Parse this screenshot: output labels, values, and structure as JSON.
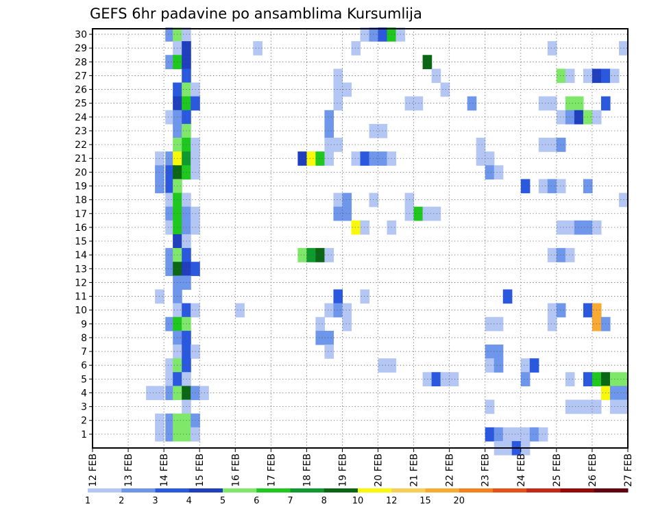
{
  "chart_data": {
    "type": "heatmap",
    "title": "GEFS 6hr padavine po ansamblima Kursumlija",
    "x_axis": {
      "tick_labels": [
        "12 FEB",
        "13 FEB",
        "14 FEB",
        "15 FEB",
        "16 FEB",
        "17 FEB",
        "18 FEB",
        "19 FEB",
        "20 FEB",
        "21 FEB",
        "22 FEB",
        "23 FEB",
        "24 FEB",
        "25 FEB",
        "26 FEB",
        "27 FEB"
      ],
      "range_days": [
        12,
        27
      ],
      "step_hours": 6
    },
    "y_axis": {
      "tick_labels": [
        "1",
        "2",
        "3",
        "4",
        "5",
        "6",
        "7",
        "8",
        "9",
        "10",
        "11",
        "12",
        "13",
        "14",
        "15",
        "16",
        "17",
        "18",
        "19",
        "20",
        "21",
        "22",
        "23",
        "24",
        "25",
        "26",
        "27",
        "28",
        "29",
        "30"
      ],
      "range": [
        0,
        30
      ]
    },
    "grid": true,
    "colorbar": {
      "placement": "bottom",
      "labels": [
        "1",
        "2",
        "3",
        "4",
        "5",
        "6",
        "7",
        "8",
        "10",
        "12",
        "15",
        "20"
      ],
      "colors": [
        "#b4c6f4",
        "#6e96ea",
        "#2a59e0",
        "#1f3fbe",
        "#7fe86a",
        "#1ec81e",
        "#0e9a2c",
        "#0b6616",
        "#f8f80a",
        "#f8ce58",
        "#f8aa32",
        "#f4801e",
        "#e85018",
        "#c82818",
        "#980a0a",
        "#640010"
      ]
    },
    "cells": [
      [
        14.04,
        30,
        2
      ],
      [
        14.25,
        30,
        5
      ],
      [
        14.5,
        30,
        1
      ],
      [
        19.5,
        30,
        1
      ],
      [
        19.75,
        30,
        2
      ],
      [
        20,
        30,
        3
      ],
      [
        20.25,
        30,
        6
      ],
      [
        20.5,
        30,
        1
      ],
      [
        14.25,
        29,
        1
      ],
      [
        14.5,
        29,
        4
      ],
      [
        16.5,
        29,
        1
      ],
      [
        19.25,
        29,
        1
      ],
      [
        24.75,
        29,
        1
      ],
      [
        26.75,
        29,
        1
      ],
      [
        14.04,
        28,
        2
      ],
      [
        14.25,
        28,
        6
      ],
      [
        14.5,
        28,
        4
      ],
      [
        21.25,
        28,
        8
      ],
      [
        14.5,
        27,
        3
      ],
      [
        18.75,
        27,
        1
      ],
      [
        21.5,
        27,
        1
      ],
      [
        25,
        27,
        5
      ],
      [
        25.25,
        27,
        1
      ],
      [
        25.75,
        27,
        1
      ],
      [
        26,
        27,
        4
      ],
      [
        26.25,
        27,
        3
      ],
      [
        26.5,
        27,
        1
      ],
      [
        14.25,
        26,
        3
      ],
      [
        14.5,
        26,
        5
      ],
      [
        14.75,
        26,
        1
      ],
      [
        18.75,
        26,
        1
      ],
      [
        19,
        26,
        1
      ],
      [
        21.75,
        26,
        1
      ],
      [
        14.25,
        25,
        4
      ],
      [
        14.5,
        25,
        6
      ],
      [
        14.75,
        25,
        3
      ],
      [
        18.75,
        25,
        1
      ],
      [
        20.75,
        25,
        1
      ],
      [
        21,
        25,
        1
      ],
      [
        22.5,
        25,
        2
      ],
      [
        24.5,
        25,
        1
      ],
      [
        24.75,
        25,
        1
      ],
      [
        25.25,
        25,
        5
      ],
      [
        25.5,
        25,
        5
      ],
      [
        26.25,
        25,
        3
      ],
      [
        14.04,
        24,
        1
      ],
      [
        14.25,
        24,
        2
      ],
      [
        14.5,
        24,
        3
      ],
      [
        18.5,
        24,
        2
      ],
      [
        25,
        24,
        1
      ],
      [
        25.25,
        24,
        2
      ],
      [
        25.5,
        24,
        4
      ],
      [
        25.75,
        24,
        5
      ],
      [
        26,
        24,
        1
      ],
      [
        14.25,
        23,
        2
      ],
      [
        14.5,
        23,
        5
      ],
      [
        18.5,
        23,
        2
      ],
      [
        19.75,
        23,
        1
      ],
      [
        20,
        23,
        1
      ],
      [
        14.25,
        22,
        5
      ],
      [
        14.5,
        22,
        6
      ],
      [
        14.75,
        22,
        1
      ],
      [
        18.5,
        22,
        1
      ],
      [
        18.75,
        22,
        1
      ],
      [
        22.75,
        22,
        1
      ],
      [
        24.5,
        22,
        1
      ],
      [
        24.75,
        22,
        1
      ],
      [
        25,
        22,
        2
      ],
      [
        13.75,
        21,
        1
      ],
      [
        14.04,
        21,
        2
      ],
      [
        14.25,
        21,
        9
      ],
      [
        14.5,
        21,
        7
      ],
      [
        14.75,
        21,
        1
      ],
      [
        17.75,
        21,
        4
      ],
      [
        18,
        21,
        9
      ],
      [
        18.25,
        21,
        6
      ],
      [
        18.5,
        21,
        1
      ],
      [
        19.25,
        21,
        1
      ],
      [
        19.5,
        21,
        3
      ],
      [
        19.75,
        21,
        2
      ],
      [
        20,
        21,
        2
      ],
      [
        20.25,
        21,
        1
      ],
      [
        22.75,
        21,
        1
      ],
      [
        23,
        21,
        1
      ],
      [
        13.75,
        20,
        2
      ],
      [
        14.04,
        20,
        3
      ],
      [
        14.25,
        20,
        8
      ],
      [
        14.5,
        20,
        6
      ],
      [
        14.75,
        20,
        1
      ],
      [
        23,
        20,
        2
      ],
      [
        23.25,
        20,
        1
      ],
      [
        13.75,
        19,
        2
      ],
      [
        14.04,
        19,
        3
      ],
      [
        14.25,
        19,
        5
      ],
      [
        24,
        19,
        3
      ],
      [
        24.5,
        19,
        1
      ],
      [
        24.75,
        19,
        2
      ],
      [
        25,
        19,
        1
      ],
      [
        25.75,
        19,
        2
      ],
      [
        14.04,
        18,
        1
      ],
      [
        14.25,
        18,
        6
      ],
      [
        14.5,
        18,
        1
      ],
      [
        18.75,
        18,
        1
      ],
      [
        19,
        18,
        2
      ],
      [
        19.75,
        18,
        1
      ],
      [
        20.75,
        18,
        1
      ],
      [
        26.75,
        18,
        1
      ],
      [
        14.04,
        17,
        2
      ],
      [
        14.25,
        17,
        6
      ],
      [
        14.5,
        17,
        2
      ],
      [
        14.75,
        17,
        1
      ],
      [
        18.75,
        17,
        2
      ],
      [
        19,
        17,
        2
      ],
      [
        20.75,
        17,
        1
      ],
      [
        21,
        17,
        6
      ],
      [
        21.25,
        17,
        1
      ],
      [
        21.5,
        17,
        1
      ],
      [
        14.04,
        16,
        1
      ],
      [
        14.25,
        16,
        6
      ],
      [
        14.5,
        16,
        2
      ],
      [
        14.75,
        16,
        1
      ],
      [
        19.25,
        16,
        9
      ],
      [
        19.5,
        16,
        1
      ],
      [
        20.25,
        16,
        1
      ],
      [
        25,
        16,
        1
      ],
      [
        25.25,
        16,
        1
      ],
      [
        25.5,
        16,
        2
      ],
      [
        25.75,
        16,
        2
      ],
      [
        26,
        16,
        1
      ],
      [
        14.25,
        15,
        4
      ],
      [
        14.5,
        15,
        1
      ],
      [
        14.04,
        14,
        2
      ],
      [
        14.25,
        14,
        5
      ],
      [
        14.5,
        14,
        3
      ],
      [
        17.75,
        14,
        5
      ],
      [
        18,
        14,
        7
      ],
      [
        18.25,
        14,
        8
      ],
      [
        18.5,
        14,
        1
      ],
      [
        24.75,
        14,
        1
      ],
      [
        25,
        14,
        2
      ],
      [
        25.25,
        14,
        1
      ],
      [
        14.04,
        13,
        2
      ],
      [
        14.25,
        13,
        8
      ],
      [
        14.5,
        13,
        4
      ],
      [
        14.75,
        13,
        3
      ],
      [
        14.25,
        12,
        2
      ],
      [
        14.5,
        12,
        2
      ],
      [
        13.75,
        11,
        1
      ],
      [
        14.25,
        11,
        2
      ],
      [
        18.75,
        11,
        3
      ],
      [
        19.5,
        11,
        1
      ],
      [
        23.5,
        11,
        3
      ],
      [
        14.25,
        10,
        1
      ],
      [
        14.5,
        10,
        3
      ],
      [
        14.75,
        10,
        1
      ],
      [
        16,
        10,
        1
      ],
      [
        18.5,
        10,
        1
      ],
      [
        18.75,
        10,
        2
      ],
      [
        19,
        10,
        1
      ],
      [
        24.75,
        10,
        1
      ],
      [
        25,
        10,
        2
      ],
      [
        25.75,
        10,
        3
      ],
      [
        26,
        10,
        11
      ],
      [
        14.04,
        9,
        2
      ],
      [
        14.25,
        9,
        6
      ],
      [
        14.5,
        9,
        5
      ],
      [
        18.25,
        9,
        1
      ],
      [
        19,
        9,
        1
      ],
      [
        23,
        9,
        1
      ],
      [
        23.25,
        9,
        1
      ],
      [
        24.75,
        9,
        1
      ],
      [
        26,
        9,
        11
      ],
      [
        26.25,
        9,
        2
      ],
      [
        14.25,
        8,
        2
      ],
      [
        14.5,
        8,
        3
      ],
      [
        18.25,
        8,
        2
      ],
      [
        18.5,
        8,
        2
      ],
      [
        14.25,
        7,
        1
      ],
      [
        14.5,
        7,
        3
      ],
      [
        14.75,
        7,
        1
      ],
      [
        18.5,
        7,
        1
      ],
      [
        23,
        7,
        2
      ],
      [
        23.25,
        7,
        2
      ],
      [
        14.04,
        6,
        1
      ],
      [
        14.25,
        6,
        5
      ],
      [
        14.5,
        6,
        3
      ],
      [
        20,
        6,
        1
      ],
      [
        20.25,
        6,
        1
      ],
      [
        23,
        6,
        1
      ],
      [
        23.25,
        6,
        2
      ],
      [
        24,
        6,
        1
      ],
      [
        24.25,
        6,
        3
      ],
      [
        14.04,
        5,
        1
      ],
      [
        14.25,
        5,
        3
      ],
      [
        14.5,
        5,
        1
      ],
      [
        21.25,
        5,
        1
      ],
      [
        21.5,
        5,
        3
      ],
      [
        21.75,
        5,
        1
      ],
      [
        22,
        5,
        1
      ],
      [
        24,
        5,
        2
      ],
      [
        25.25,
        5,
        1
      ],
      [
        25.75,
        5,
        3
      ],
      [
        26,
        5,
        6
      ],
      [
        26.25,
        5,
        8
      ],
      [
        26.5,
        5,
        5
      ],
      [
        26.75,
        5,
        5
      ],
      [
        13.5,
        4,
        1
      ],
      [
        13.75,
        4,
        1
      ],
      [
        14.04,
        4,
        2
      ],
      [
        14.25,
        4,
        5
      ],
      [
        14.5,
        4,
        8
      ],
      [
        14.75,
        4,
        2
      ],
      [
        15,
        4,
        1
      ],
      [
        26.25,
        4,
        9
      ],
      [
        26.5,
        4,
        2
      ],
      [
        26.75,
        4,
        2
      ],
      [
        14.5,
        3,
        1
      ],
      [
        23,
        3,
        1
      ],
      [
        25.25,
        3,
        1
      ],
      [
        25.5,
        3,
        1
      ],
      [
        25.75,
        3,
        1
      ],
      [
        26,
        3,
        1
      ],
      [
        26.5,
        3,
        1
      ],
      [
        26.75,
        3,
        1
      ],
      [
        13.75,
        2,
        1
      ],
      [
        14.04,
        2,
        2
      ],
      [
        14.25,
        2,
        5
      ],
      [
        14.5,
        2,
        5
      ],
      [
        14.75,
        2,
        2
      ],
      [
        13.75,
        1,
        1
      ],
      [
        14.04,
        1,
        2
      ],
      [
        14.25,
        1,
        5
      ],
      [
        14.5,
        1,
        5
      ],
      [
        14.75,
        1,
        1
      ],
      [
        23,
        1,
        3
      ],
      [
        23.25,
        1,
        2
      ],
      [
        23.5,
        1,
        1
      ],
      [
        23.75,
        1,
        1
      ],
      [
        24,
        1,
        1
      ],
      [
        24.25,
        1,
        2
      ],
      [
        24.5,
        1,
        1
      ],
      [
        23.25,
        0,
        1
      ],
      [
        23.5,
        0,
        1
      ],
      [
        23.75,
        0,
        3
      ],
      [
        24,
        0,
        1
      ]
    ]
  }
}
